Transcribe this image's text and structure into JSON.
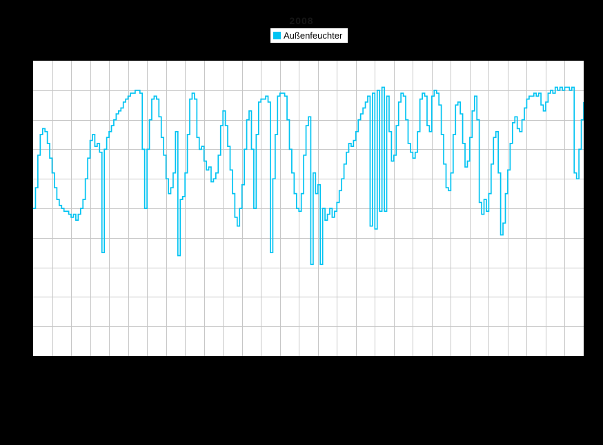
{
  "page": {
    "background": "#000000"
  },
  "title": {
    "text": "2008",
    "color": "#161616"
  },
  "legend": {
    "label": "Außenfeuchter",
    "swatch_color": "#00c3f2"
  },
  "chart_data": {
    "type": "line",
    "title": "2008",
    "legend_position": "top-center",
    "grid": true,
    "plot_background": "#ffffff",
    "gridline_color": "#c6c6c6",
    "line_style": "step",
    "x_axis": {
      "tick_labels_visible": false,
      "gridline_intervals": 29,
      "implied_unit": "days"
    },
    "y_axis": {
      "tick_labels_visible": false,
      "gridline_intervals": 10,
      "range": [
        0,
        100
      ],
      "implied_unit": "%"
    },
    "series": [
      {
        "name": "Außenfeuchter",
        "color": "#00c3f2",
        "unit": "%",
        "values": [
          50,
          57,
          68,
          75,
          77,
          76,
          72,
          67,
          62,
          57,
          53,
          51,
          50,
          49,
          49,
          48,
          47,
          48,
          46,
          48,
          50,
          53,
          60,
          67,
          73,
          75,
          71,
          72,
          69,
          35,
          70,
          74,
          76,
          78,
          80,
          82,
          83,
          84,
          86,
          87,
          88,
          89,
          89,
          90,
          90,
          89,
          70,
          50,
          70,
          80,
          87,
          88,
          87,
          81,
          74,
          68,
          60,
          55,
          57,
          62,
          76,
          34,
          53,
          54,
          62,
          75,
          87,
          89,
          87,
          74,
          70,
          71,
          66,
          63,
          64,
          59,
          60,
          62,
          68,
          78,
          83,
          78,
          71,
          63,
          55,
          47,
          44,
          50,
          58,
          70,
          80,
          83,
          70,
          50,
          75,
          86,
          87,
          87,
          88,
          86,
          35,
          60,
          75,
          88,
          89,
          89,
          88,
          80,
          70,
          62,
          55,
          50,
          49,
          55,
          68,
          78,
          81,
          31,
          62,
          55,
          58,
          31,
          50,
          46,
          48,
          50,
          47,
          49,
          52,
          56,
          60,
          65,
          69,
          72,
          71,
          73,
          76,
          80,
          82,
          84,
          86,
          88,
          44,
          89,
          43,
          90,
          49,
          91,
          49,
          88,
          76,
          66,
          68,
          78,
          86,
          89,
          88,
          80,
          72,
          69,
          67,
          69,
          76,
          87,
          89,
          88,
          78,
          76,
          88,
          90,
          89,
          85,
          75,
          65,
          57,
          56,
          62,
          75,
          85,
          86,
          82,
          72,
          64,
          66,
          74,
          83,
          88,
          80,
          52,
          48,
          53,
          49,
          55,
          65,
          74,
          76,
          62,
          41,
          45,
          55,
          63,
          72,
          79,
          81,
          77,
          76,
          80,
          84,
          87,
          88,
          88,
          89,
          88,
          89,
          85,
          83,
          86,
          89,
          90,
          89,
          91,
          90,
          91,
          90,
          91,
          91,
          90,
          91,
          62,
          60,
          70,
          80,
          86
        ]
      }
    ]
  }
}
